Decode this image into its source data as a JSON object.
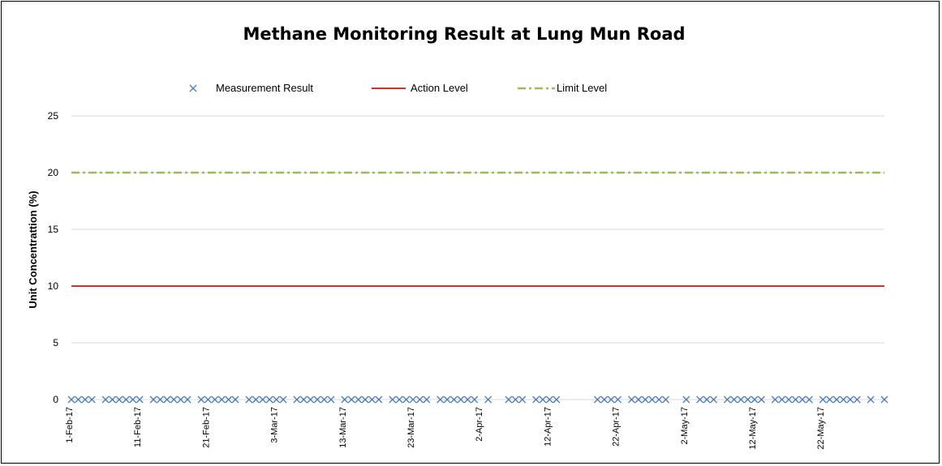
{
  "chart_data": {
    "type": "scatter",
    "title": "Methane Monitoring Result at Lung Mun Road",
    "ylabel": "Unit Concentrattion (%)",
    "xlabel": "",
    "ylim": [
      0,
      25
    ],
    "yticks": [
      0,
      5,
      10,
      15,
      20,
      25
    ],
    "grid": true,
    "legend_position": "top",
    "x_tick_labels": [
      "1-Feb-17",
      "11-Feb-17",
      "21-Feb-17",
      "3-Mar-17",
      "13-Mar-17",
      "23-Mar-17",
      "2-Apr-17",
      "12-Apr-17",
      "22-Apr-17",
      "2-May-17",
      "12-May-17",
      "22-May-17"
    ],
    "xlim": [
      "2017-02-01",
      "2017-05-31"
    ],
    "series": [
      {
        "name": "Measurement Result",
        "kind": "points",
        "marker": "x",
        "color": "#4a7ebb",
        "x": [
          "2017-02-01",
          "2017-02-02",
          "2017-02-03",
          "2017-02-04",
          "2017-02-06",
          "2017-02-07",
          "2017-02-08",
          "2017-02-09",
          "2017-02-10",
          "2017-02-11",
          "2017-02-13",
          "2017-02-14",
          "2017-02-15",
          "2017-02-16",
          "2017-02-17",
          "2017-02-18",
          "2017-02-20",
          "2017-02-21",
          "2017-02-22",
          "2017-02-23",
          "2017-02-24",
          "2017-02-25",
          "2017-02-27",
          "2017-02-28",
          "2017-03-01",
          "2017-03-02",
          "2017-03-03",
          "2017-03-04",
          "2017-03-06",
          "2017-03-07",
          "2017-03-08",
          "2017-03-09",
          "2017-03-10",
          "2017-03-11",
          "2017-03-13",
          "2017-03-14",
          "2017-03-15",
          "2017-03-16",
          "2017-03-17",
          "2017-03-18",
          "2017-03-20",
          "2017-03-21",
          "2017-03-22",
          "2017-03-23",
          "2017-03-24",
          "2017-03-25",
          "2017-03-27",
          "2017-03-28",
          "2017-03-29",
          "2017-03-30",
          "2017-03-31",
          "2017-04-01",
          "2017-04-03",
          "2017-04-06",
          "2017-04-07",
          "2017-04-08",
          "2017-04-10",
          "2017-04-11",
          "2017-04-12",
          "2017-04-13",
          "2017-04-19",
          "2017-04-20",
          "2017-04-21",
          "2017-04-22",
          "2017-04-24",
          "2017-04-25",
          "2017-04-26",
          "2017-04-27",
          "2017-04-28",
          "2017-04-29",
          "2017-05-02",
          "2017-05-04",
          "2017-05-05",
          "2017-05-06",
          "2017-05-08",
          "2017-05-09",
          "2017-05-10",
          "2017-05-11",
          "2017-05-12",
          "2017-05-13",
          "2017-05-15",
          "2017-05-16",
          "2017-05-17",
          "2017-05-18",
          "2017-05-19",
          "2017-05-20",
          "2017-05-22",
          "2017-05-23",
          "2017-05-24",
          "2017-05-25",
          "2017-05-26",
          "2017-05-27",
          "2017-05-29",
          "2017-05-31"
        ],
        "y": [
          0,
          0,
          0,
          0,
          0,
          0,
          0,
          0,
          0,
          0,
          0,
          0,
          0,
          0,
          0,
          0,
          0,
          0,
          0,
          0,
          0,
          0,
          0,
          0,
          0,
          0,
          0,
          0,
          0,
          0,
          0,
          0,
          0,
          0,
          0,
          0,
          0,
          0,
          0,
          0,
          0,
          0,
          0,
          0,
          0,
          0,
          0,
          0,
          0,
          0,
          0,
          0,
          0,
          0,
          0,
          0,
          0,
          0,
          0,
          0,
          0,
          0,
          0,
          0,
          0,
          0,
          0,
          0,
          0,
          0,
          0,
          0,
          0,
          0,
          0,
          0,
          0,
          0,
          0,
          0,
          0,
          0,
          0,
          0,
          0,
          0,
          0,
          0,
          0,
          0,
          0,
          0,
          0,
          0
        ]
      },
      {
        "name": "Action Level",
        "kind": "hline",
        "color": "#c0392b",
        "value": 10
      },
      {
        "name": "Limit Level",
        "kind": "hline",
        "dash": "dash-dot",
        "color": "#9bbb59",
        "value": 20
      }
    ]
  }
}
